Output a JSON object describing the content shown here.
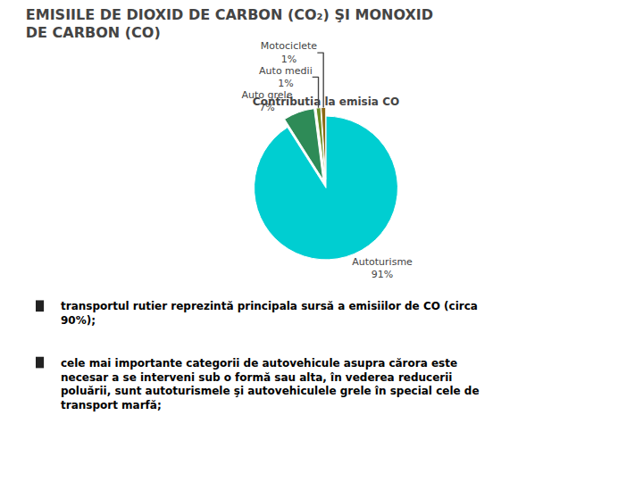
{
  "chart_data": {
    "type": "pie",
    "title": "EMISIILE DE DIOXID DE CARBON (CO₂) ŞI MONOXID\nDE CARBON (CO)",
    "subtitle": "Contributia la emisia CO",
    "categories": [
      "Autoturisme",
      "Auto grele",
      "Auto medii",
      "Motociclete"
    ],
    "values": [
      91,
      7,
      1,
      1
    ],
    "value_labels": [
      "91%",
      "7%",
      "1%",
      "1%"
    ],
    "colors": [
      "#00CED1",
      "#2E8B57",
      "#6B8E23",
      "#8B6914"
    ],
    "data_labels": true,
    "legend": false,
    "annotations": [
      "transportul rutier reprezintă principala sursă a emisiilor de CO (circa\n90%);",
      "cele mai importante categorii de autovehicule asupra cărora este\nnecesar a se interveni sub o formă sau alta, în vederea reducerii\npoluării, sunt autoturismele şi autovehiculele grele în special cele de\ntransport marfă;"
    ]
  }
}
